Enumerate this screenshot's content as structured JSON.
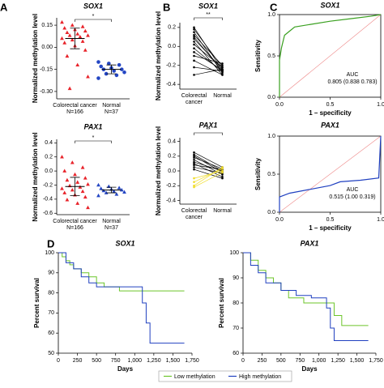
{
  "chart_data": [
    {
      "type": "strip",
      "panel": "A",
      "title": "SOX1",
      "ylabel": "Normalized methylation level",
      "categories": [
        "Colorectal cancer",
        "Normal"
      ],
      "sublabels": [
        "N=166",
        "N=37"
      ],
      "annotation": "*",
      "groups": [
        {
          "color": "#e8232a",
          "marker": "triangle",
          "mean": 0.06,
          "sd": 0.07,
          "values": [
            0.17,
            0.15,
            0.14,
            0.13,
            0.12,
            0.11,
            0.1,
            0.09,
            0.08,
            0.08,
            0.07,
            0.06,
            0.05,
            0.04,
            0.03,
            0.01,
            -0.02,
            -0.06,
            -0.12,
            -0.2,
            -0.28
          ]
        },
        {
          "color": "#2446c4",
          "marker": "circle",
          "mean": -0.15,
          "sd": 0.03,
          "values": [
            -0.1,
            -0.11,
            -0.12,
            -0.13,
            -0.14,
            -0.15,
            -0.15,
            -0.16,
            -0.17,
            -0.18,
            -0.19,
            -0.21
          ]
        }
      ],
      "ylim": [
        -0.35,
        0.2
      ],
      "yticks": [
        0.15,
        {
          "value": 0,
          "label": "0.00"
        },
        -0.15,
        {
          "value": -0.3,
          "label": "-0.30"
        }
      ]
    },
    {
      "type": "strip",
      "title": "PAX1",
      "ylabel": "Normalized methylation level",
      "categories": [
        "Colorectal cancer",
        "Normal"
      ],
      "sublabels": [
        "N=166",
        "N=37"
      ],
      "annotation": "*",
      "groups": [
        {
          "color": "#e8232a",
          "marker": "triangle",
          "mean": -0.22,
          "sd": 0.13,
          "values": [
            0.2,
            0.12,
            0.05,
            0.0,
            -0.05,
            -0.1,
            -0.13,
            -0.16,
            -0.19,
            -0.21,
            -0.23,
            -0.25,
            -0.27,
            -0.29,
            -0.31,
            -0.34,
            -0.37,
            -0.41,
            -0.46,
            -0.52
          ]
        },
        {
          "color": "#2446c4",
          "marker": "triangle",
          "mean": -0.27,
          "sd": 0.04,
          "values": [
            -0.2,
            -0.22,
            -0.24,
            -0.25,
            -0.26,
            -0.27,
            -0.28,
            -0.29,
            -0.3,
            -0.31,
            -0.33,
            -0.35
          ]
        }
      ],
      "ylim": [
        -0.62,
        0.45
      ],
      "yticks": [
        0.4,
        0.2,
        {
          "value": 0,
          "label": "0.0"
        },
        -0.2,
        -0.4,
        -0.6
      ]
    },
    {
      "type": "paired",
      "panel": "B",
      "title": "SOX1",
      "ylabel": "Normalized methylation level",
      "categories": [
        [
          "Colorectal",
          "cancer"
        ],
        [
          "Normal"
        ]
      ],
      "annotation": "**",
      "series": [
        {
          "color": "#000000",
          "pairs": [
            [
              0.2,
              -0.25
            ],
            [
              0.18,
              -0.22
            ],
            [
              0.15,
              -0.28
            ],
            [
              0.12,
              -0.2
            ],
            [
              0.1,
              -0.26
            ],
            [
              0.08,
              -0.24
            ],
            [
              0.05,
              -0.3
            ],
            [
              0.02,
              -0.22
            ],
            [
              -0.02,
              -0.27
            ],
            [
              -0.06,
              -0.25
            ],
            [
              -0.1,
              -0.18
            ],
            [
              -0.15,
              -0.3
            ],
            [
              -0.22,
              -0.26
            ],
            [
              -0.3,
              -0.24
            ]
          ]
        }
      ],
      "ylim": [
        -0.45,
        0.25
      ],
      "yticks": [
        0.2,
        {
          "value": 0,
          "label": "0.0"
        },
        -0.2,
        -0.4
      ]
    },
    {
      "type": "paired",
      "title": "PAX1",
      "ylabel": "Normalized methylation level",
      "categories": [
        [
          "Colorectal",
          "cancer"
        ],
        [
          "Normal"
        ]
      ],
      "annotation": "**",
      "series": [
        {
          "color": "#000000",
          "pairs": [
            [
              0.25,
              0.05
            ],
            [
              0.22,
              0.0
            ],
            [
              0.2,
              -0.02
            ],
            [
              0.18,
              0.03
            ],
            [
              0.15,
              -0.05
            ],
            [
              0.12,
              0.0
            ],
            [
              0.1,
              -0.08
            ],
            [
              0.08,
              0.02
            ],
            [
              0.05,
              -0.03
            ],
            [
              0.02,
              -0.1
            ]
          ]
        },
        {
          "color": "#f0dc28",
          "pairs": [
            [
              -0.1,
              0.0
            ],
            [
              -0.15,
              0.03
            ],
            [
              -0.2,
              0.05
            ],
            [
              -0.22,
              -0.02
            ]
          ]
        }
      ],
      "ylim": [
        -0.45,
        0.45
      ],
      "yticks": [
        0.4,
        0.2,
        {
          "value": 0,
          "label": "0.0"
        },
        -0.2,
        -0.4
      ]
    },
    {
      "type": "roc",
      "panel": "C",
      "title": "SOX1",
      "xlabel": "1 – specificity",
      "ylabel": "Sensitivity",
      "auc_label": "AUC",
      "auc": "0.805 (0.838 0.783)",
      "color": "#3aa020",
      "x": [
        0,
        0,
        0.02,
        0.05,
        0.1,
        0.15,
        0.3,
        0.5,
        0.7,
        0.9,
        1
      ],
      "y": [
        0,
        0.45,
        0.6,
        0.75,
        0.8,
        0.85,
        0.88,
        0.92,
        0.95,
        0.98,
        1
      ],
      "xlim": [
        0,
        1
      ],
      "ylim": [
        0,
        1
      ],
      "xticks": [
        {
          "value": 0,
          "label": "0.0"
        },
        0.5,
        {
          "value": 1,
          "label": "1.0"
        }
      ],
      "yticks": [
        {
          "value": 0,
          "label": "0.0"
        },
        0.5,
        {
          "value": 1,
          "label": "1.0"
        }
      ]
    },
    {
      "type": "roc",
      "title": "PAX1",
      "xlabel": "1 – specificity",
      "ylabel": "Sensitivity",
      "auc_label": "AUC",
      "auc": "0.515 (1.00 0.319)",
      "color": "#2040c0",
      "x": [
        0,
        0,
        0.1,
        0.3,
        0.5,
        0.6,
        0.8,
        0.98,
        1
      ],
      "y": [
        0,
        0.2,
        0.25,
        0.3,
        0.35,
        0.4,
        0.42,
        0.45,
        1
      ],
      "xlim": [
        0,
        1
      ],
      "ylim": [
        0,
        1
      ],
      "xticks": [
        {
          "value": 0,
          "label": "0.0"
        },
        0.5,
        {
          "value": 1,
          "label": "1.0"
        }
      ],
      "yticks": [
        {
          "value": 0,
          "label": "0.0"
        },
        0.5,
        {
          "value": 1,
          "label": "1.0"
        }
      ]
    },
    {
      "type": "survival",
      "panel": "D",
      "title": "SOX1",
      "xlabel": "Days",
      "ylabel": "Percent survival",
      "series": [
        {
          "name": "Low methylation",
          "color": "#6cc52a",
          "x": [
            0,
            50,
            100,
            150,
            200,
            300,
            400,
            500,
            600,
            800,
            1000,
            1200,
            1650
          ],
          "values": [
            100,
            98,
            96,
            94,
            92,
            90,
            88,
            85,
            83,
            81,
            81,
            81,
            81
          ]
        },
        {
          "name": "High methylation",
          "color": "#2040c0",
          "x": [
            0,
            100,
            200,
            300,
            400,
            500,
            700,
            1000,
            1100,
            1150,
            1200,
            1650
          ],
          "values": [
            100,
            95,
            92,
            88,
            85,
            83,
            83,
            83,
            75,
            65,
            55,
            55
          ]
        }
      ],
      "xlim": [
        0,
        1750
      ],
      "ylim": [
        50,
        100
      ],
      "xticks": [
        0,
        250,
        500,
        750,
        {
          "value": 1000,
          "label": "1,000"
        },
        {
          "value": 1250,
          "label": "1,250"
        },
        {
          "value": 1500,
          "label": "1,500"
        },
        {
          "value": 1750,
          "label": "1,750"
        }
      ],
      "yticks": [
        50,
        60,
        70,
        80,
        90,
        100
      ]
    },
    {
      "type": "survival",
      "title": "PAX1",
      "xlabel": "Days",
      "ylabel": "Percent survival",
      "series": [
        {
          "name": "Low methylation",
          "color": "#6cc52a",
          "x": [
            0,
            100,
            200,
            300,
            400,
            500,
            600,
            800,
            1000,
            1200,
            1300,
            1650
          ],
          "values": [
            100,
            97,
            93,
            90,
            88,
            85,
            82,
            80,
            80,
            75,
            71,
            71
          ]
        },
        {
          "name": "High methylation",
          "color": "#2040c0",
          "x": [
            0,
            100,
            200,
            300,
            500,
            700,
            900,
            1100,
            1150,
            1200,
            1650
          ],
          "values": [
            100,
            95,
            92,
            88,
            85,
            83,
            82,
            78,
            70,
            65,
            65
          ]
        }
      ],
      "xlim": [
        0,
        1750
      ],
      "ylim": [
        60,
        100
      ],
      "xticks": [
        0,
        250,
        500,
        750,
        {
          "value": 1000,
          "label": "1,000"
        },
        {
          "value": 1250,
          "label": "1,250"
        },
        {
          "value": 1500,
          "label": "1,500"
        },
        {
          "value": 1750,
          "label": "1,750"
        }
      ],
      "yticks": [
        60,
        70,
        80,
        90,
        100
      ]
    }
  ]
}
